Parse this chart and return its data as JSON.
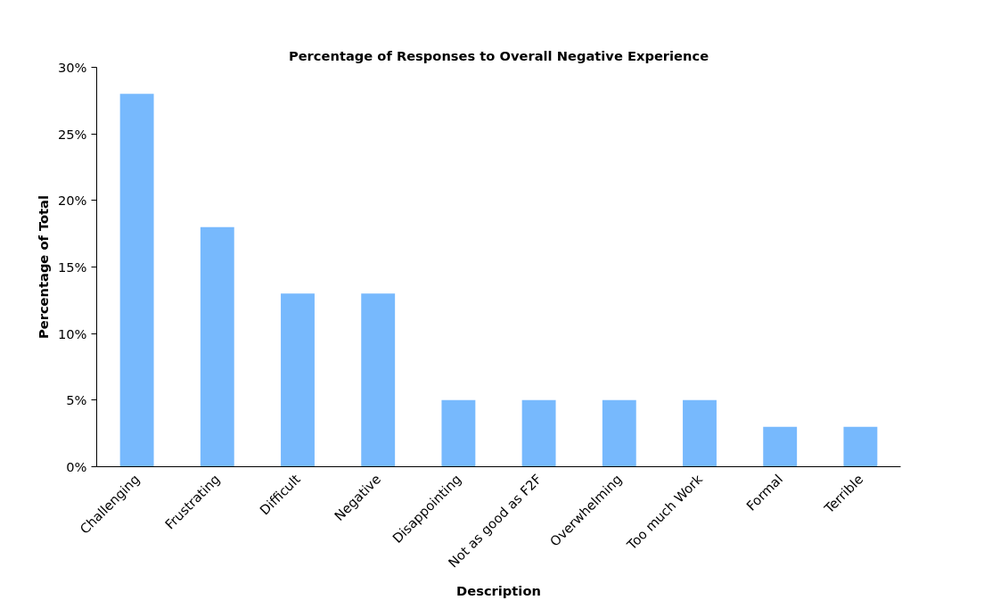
{
  "chart_data": {
    "type": "bar",
    "title": "Percentage of Responses to Overall Negative Experience",
    "xlabel": "Description",
    "ylabel": "Percentage of Total",
    "categories": [
      "Challenging",
      "Frustrating",
      "Difficult",
      "Negative",
      "Disappointing",
      "Not as good as F2F",
      "Overwhelming",
      "Too much Work",
      "Formal",
      "Terrible"
    ],
    "values": [
      28,
      18,
      13,
      13,
      5,
      5,
      5,
      5,
      3,
      3
    ],
    "color": "#77b9fd",
    "ylim": [
      0,
      30
    ],
    "yticks": [
      {
        "value": 0,
        "label": "0%"
      },
      {
        "value": 5,
        "label": "5%"
      },
      {
        "value": 10,
        "label": "10%"
      },
      {
        "value": 15,
        "label": "15%"
      },
      {
        "value": 20,
        "label": "20%"
      },
      {
        "value": 25,
        "label": "25%"
      },
      {
        "value": 30,
        "label": "30%"
      }
    ],
    "grid": false
  }
}
